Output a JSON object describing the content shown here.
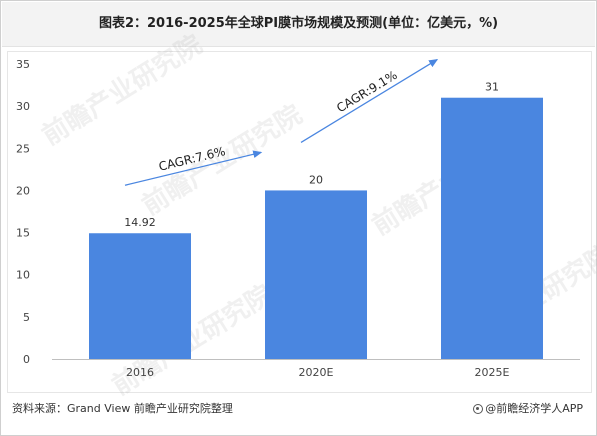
{
  "title": "图表2：2016-2025年全球PI膜市场规模及预测(单位：亿美元，%)",
  "source": "资料来源：Grand View 前瞻产业研究院整理",
  "brand": "@前瞻经济学人APP",
  "watermark": "前瞻产业研究院",
  "chart_data": {
    "type": "bar",
    "categories": [
      "2016",
      "2020E",
      "2025E"
    ],
    "values": [
      14.92,
      20,
      31
    ],
    "value_labels": [
      "14.92",
      "20",
      "31"
    ],
    "ylim": [
      0,
      35
    ],
    "yticks": [
      0,
      5,
      10,
      15,
      20,
      25,
      30,
      35
    ],
    "xlabel": "",
    "ylabel": "",
    "grid": false,
    "legend": "none",
    "bar_color": "#4a86e0",
    "annotations": [
      {
        "text": "CAGR:7.6%",
        "from": "2016",
        "to": "2020E"
      },
      {
        "text": "CAGR:9.1%",
        "from": "2020E",
        "to": "2025E"
      }
    ]
  }
}
